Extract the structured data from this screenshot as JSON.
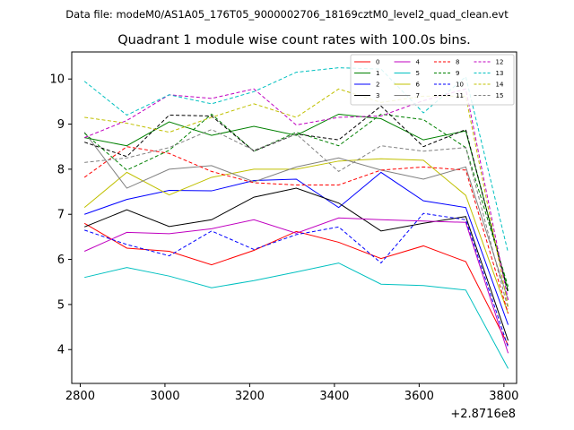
{
  "chart_data": {
    "type": "line",
    "subtitle": "Data file: modeM0/AS1A05_176T05_9000002706_18169cztM0_level2_quad_clean.evt",
    "title": "Quadrant 1 module wise count rates with 100.0s bins.",
    "xlabel": "",
    "ylabel": "",
    "x_offset_label": "+2.8716e8",
    "xlim": [
      2780,
      3830
    ],
    "ylim": [
      3.25,
      10.6
    ],
    "xticks": [
      2800,
      3000,
      3200,
      3400,
      3600,
      3800
    ],
    "yticks": [
      4,
      5,
      6,
      7,
      8,
      9,
      10
    ],
    "grid": false,
    "legend_position": "top-right",
    "x": [
      2810,
      2910,
      3010,
      3110,
      3210,
      3310,
      3410,
      3510,
      3610,
      3710,
      3810
    ],
    "series": [
      {
        "name": "0",
        "color": "#ff0000",
        "dash": "solid",
        "values": [
          6.8,
          6.25,
          6.18,
          5.88,
          6.2,
          6.62,
          6.38,
          6.02,
          6.3,
          5.95,
          4.1
        ]
      },
      {
        "name": "1",
        "color": "#008000",
        "dash": "solid",
        "values": [
          8.7,
          8.52,
          9.05,
          8.75,
          8.95,
          8.75,
          9.22,
          9.12,
          8.65,
          8.85,
          5.3
        ]
      },
      {
        "name": "2",
        "color": "#0000ff",
        "dash": "solid",
        "values": [
          7.0,
          7.33,
          7.53,
          7.52,
          7.75,
          7.78,
          7.15,
          7.93,
          7.3,
          7.15,
          4.55
        ]
      },
      {
        "name": "3",
        "color": "#000000",
        "dash": "solid",
        "values": [
          6.72,
          7.1,
          6.73,
          6.88,
          7.38,
          7.58,
          7.25,
          6.63,
          6.8,
          6.95,
          4.2
        ]
      },
      {
        "name": "4",
        "color": "#c000c0",
        "dash": "solid",
        "values": [
          6.18,
          6.6,
          6.57,
          6.68,
          6.88,
          6.58,
          6.92,
          6.88,
          6.85,
          6.82,
          3.92
        ]
      },
      {
        "name": "5",
        "color": "#00c0c0",
        "dash": "solid",
        "values": [
          5.6,
          5.82,
          5.63,
          5.37,
          5.53,
          5.72,
          5.92,
          5.45,
          5.42,
          5.32,
          3.58
        ]
      },
      {
        "name": "6",
        "color": "#c0c000",
        "dash": "solid",
        "values": [
          7.15,
          7.93,
          7.43,
          7.82,
          8.0,
          8.0,
          8.18,
          8.23,
          8.2,
          7.42,
          4.8
        ]
      },
      {
        "name": "7",
        "color": "#808080",
        "dash": "solid",
        "values": [
          8.82,
          7.58,
          8.0,
          8.08,
          7.72,
          8.05,
          8.25,
          7.98,
          7.78,
          8.05,
          5.1
        ]
      },
      {
        "name": "8",
        "color": "#ff0000",
        "dash": "dashed",
        "values": [
          7.82,
          8.5,
          8.35,
          7.95,
          7.7,
          7.65,
          7.65,
          7.98,
          8.05,
          7.98,
          4.8
        ]
      },
      {
        "name": "9",
        "color": "#008000",
        "dash": "dashed",
        "values": [
          8.8,
          7.98,
          8.42,
          9.22,
          8.4,
          8.82,
          8.52,
          9.22,
          9.1,
          8.48,
          5.4
        ]
      },
      {
        "name": "10",
        "color": "#0000ff",
        "dash": "dashed",
        "values": [
          6.65,
          6.33,
          6.08,
          6.63,
          6.22,
          6.55,
          6.72,
          5.92,
          7.02,
          6.88,
          4.05
        ]
      },
      {
        "name": "11",
        "color": "#000000",
        "dash": "dashed",
        "values": [
          8.6,
          8.28,
          9.2,
          9.18,
          8.4,
          8.78,
          8.65,
          9.4,
          8.5,
          8.88,
          5.25
        ]
      },
      {
        "name": "12",
        "color": "#c000c0",
        "dash": "dashed",
        "values": [
          8.7,
          9.08,
          9.65,
          9.57,
          9.78,
          8.98,
          9.15,
          9.18,
          9.52,
          9.78,
          5.1
        ]
      },
      {
        "name": "13",
        "color": "#00c0c0",
        "dash": "dashed",
        "values": [
          9.95,
          9.2,
          9.65,
          9.45,
          9.72,
          10.15,
          10.25,
          10.22,
          9.25,
          10.05,
          6.15
        ]
      },
      {
        "name": "14",
        "color": "#c0c000",
        "dash": "dashed",
        "values": [
          9.15,
          9.02,
          8.82,
          9.15,
          9.45,
          9.15,
          9.78,
          9.48,
          9.62,
          9.62,
          4.95
        ]
      },
      {
        "name": "15",
        "color": "#808080",
        "dash": "dashed",
        "values": [
          8.15,
          8.25,
          8.48,
          8.88,
          8.42,
          8.78,
          7.95,
          8.52,
          8.4,
          8.48,
          4.9
        ]
      }
    ]
  }
}
